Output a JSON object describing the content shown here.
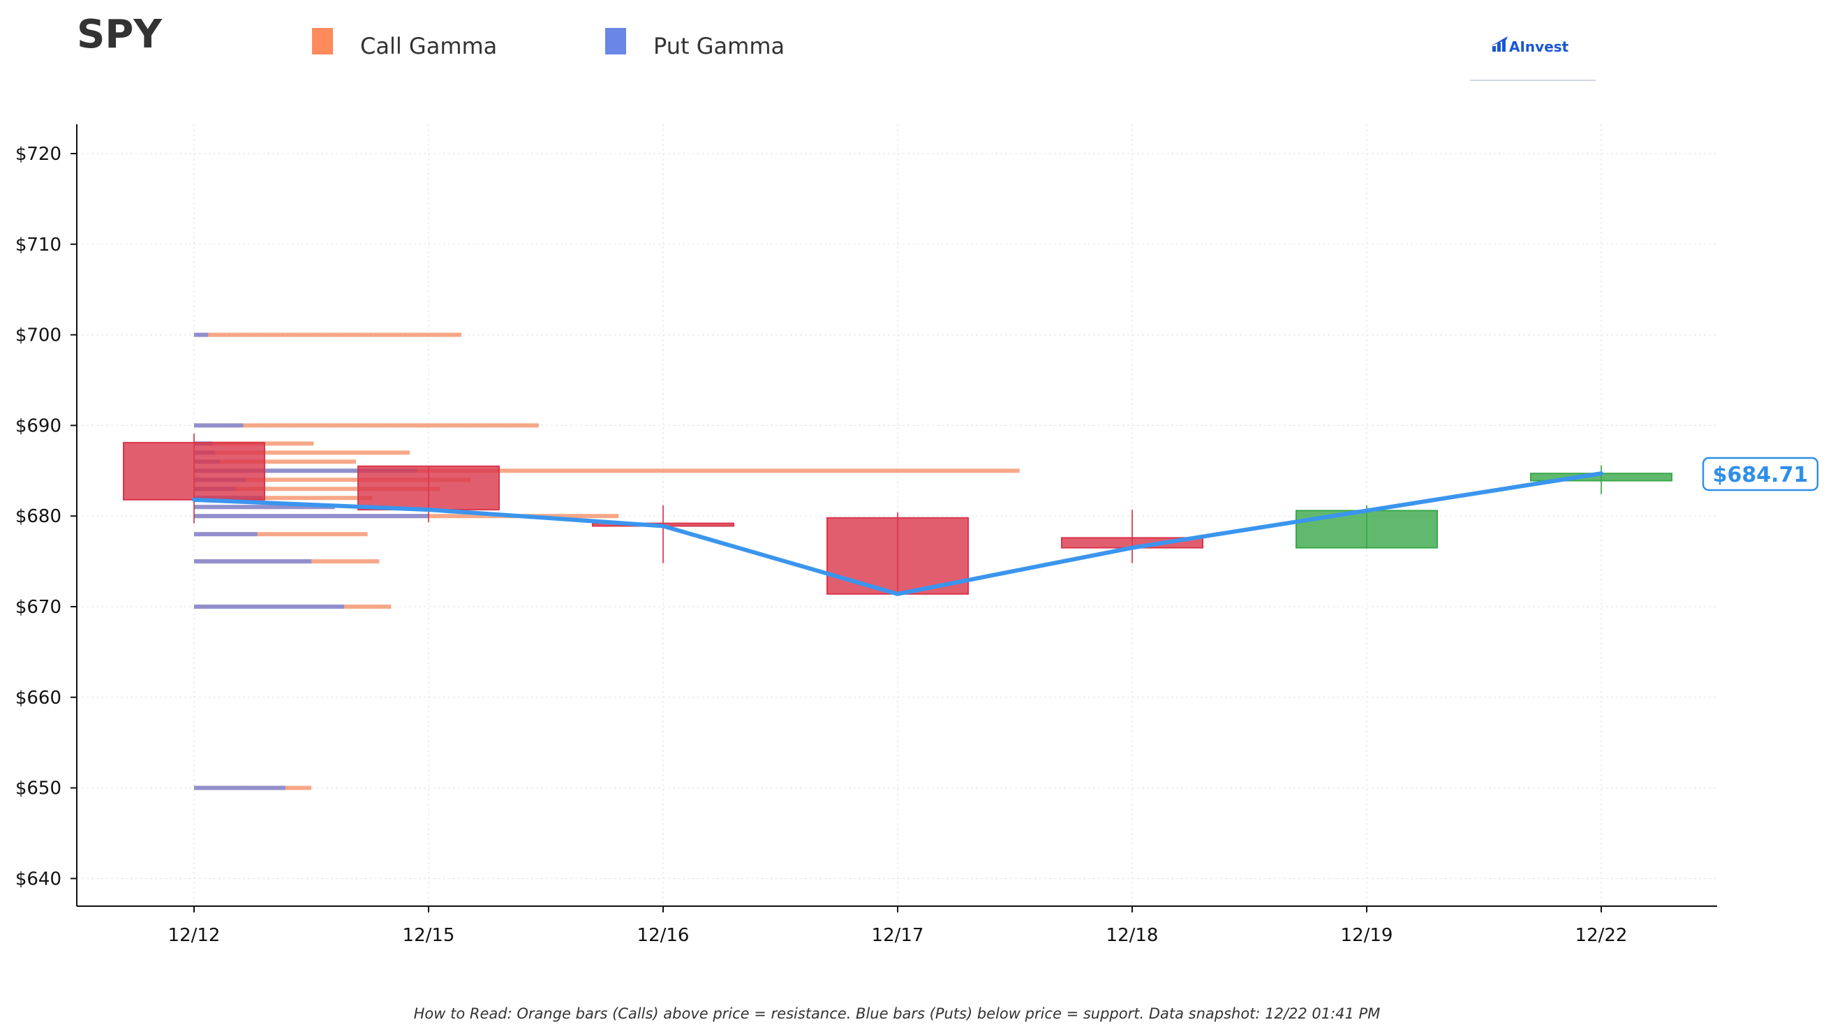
{
  "header": {
    "ticker": "SPY",
    "logo_text": "AInvest"
  },
  "legend": [
    {
      "label": "Call Gamma",
      "color": "#ff8a5c"
    },
    {
      "label": "Put Gamma",
      "color": "#6a87e8"
    }
  ],
  "current_price_label": "$684.71",
  "footnote": "How to Read: Orange bars (Calls) above price = resistance. Blue bars (Puts) below price = support. Data snapshot: 12/22 01:41 PM",
  "colors": {
    "call": "#f4875a",
    "put": "#6a87e8",
    "up": "#3aa84a",
    "down": "#d9364b",
    "price_line": "#3a95ee",
    "grid": "#e6e6e6"
  },
  "chart_data": {
    "type": "candlestick",
    "ylim": [
      637,
      723
    ],
    "y_ticks": [
      640,
      650,
      660,
      670,
      680,
      690,
      700,
      710,
      720
    ],
    "y_tick_labels": [
      "$640",
      "$650",
      "$660",
      "$670",
      "$680",
      "$690",
      "$700",
      "$710",
      "$720"
    ],
    "categories": [
      "12/12",
      "12/15",
      "12/16",
      "12/17",
      "12/18",
      "12/19",
      "12/22"
    ],
    "candles": [
      {
        "date": "12/12",
        "open": 688.1,
        "high": 689.1,
        "low": 679.2,
        "close": 681.8
      },
      {
        "date": "12/15",
        "open": 685.5,
        "high": 685.5,
        "low": 679.3,
        "close": 680.7
      },
      {
        "date": "12/16",
        "open": 679.2,
        "high": 681.2,
        "low": 674.8,
        "close": 678.9
      },
      {
        "date": "12/17",
        "open": 679.8,
        "high": 680.4,
        "low": 671.2,
        "close": 671.4
      },
      {
        "date": "12/18",
        "open": 677.6,
        "high": 680.7,
        "low": 674.8,
        "close": 676.5
      },
      {
        "date": "12/19",
        "open": 676.5,
        "high": 681.2,
        "low": 676.4,
        "close": 680.6
      },
      {
        "date": "12/22",
        "open": 683.9,
        "high": 685.6,
        "low": 682.4,
        "close": 684.7
      }
    ],
    "close_line": [
      681.8,
      680.7,
      678.9,
      671.4,
      676.5,
      680.6,
      684.7
    ],
    "gamma_units": "relative length in date-axis units from 12/12",
    "call_gamma": [
      {
        "strike": 700,
        "value": 1.14
      },
      {
        "strike": 690,
        "value": 1.47
      },
      {
        "strike": 688,
        "value": 0.51
      },
      {
        "strike": 687,
        "value": 0.92
      },
      {
        "strike": 686,
        "value": 0.69
      },
      {
        "strike": 685,
        "value": 3.52
      },
      {
        "strike": 684,
        "value": 1.18
      },
      {
        "strike": 683,
        "value": 1.05
      },
      {
        "strike": 682,
        "value": 0.76
      },
      {
        "strike": 681,
        "value": 0.6
      },
      {
        "strike": 680,
        "value": 1.81
      },
      {
        "strike": 678,
        "value": 0.74
      },
      {
        "strike": 675,
        "value": 0.79
      },
      {
        "strike": 670,
        "value": 0.84
      },
      {
        "strike": 650,
        "value": 0.5
      }
    ],
    "put_gamma": [
      {
        "strike": 700,
        "value": 0.06
      },
      {
        "strike": 690,
        "value": 0.21
      },
      {
        "strike": 688,
        "value": 0.08
      },
      {
        "strike": 687,
        "value": 0.09
      },
      {
        "strike": 686,
        "value": 0.11
      },
      {
        "strike": 685,
        "value": 0.95
      },
      {
        "strike": 684,
        "value": 0.22
      },
      {
        "strike": 683,
        "value": 0.18
      },
      {
        "strike": 682,
        "value": 0.29
      },
      {
        "strike": 681,
        "value": 0.6
      },
      {
        "strike": 680,
        "value": 1.0
      },
      {
        "strike": 678,
        "value": 0.27
      },
      {
        "strike": 675,
        "value": 0.5
      },
      {
        "strike": 670,
        "value": 0.64
      },
      {
        "strike": 650,
        "value": 0.39
      }
    ],
    "grid": true,
    "legend_position": "top-left"
  }
}
